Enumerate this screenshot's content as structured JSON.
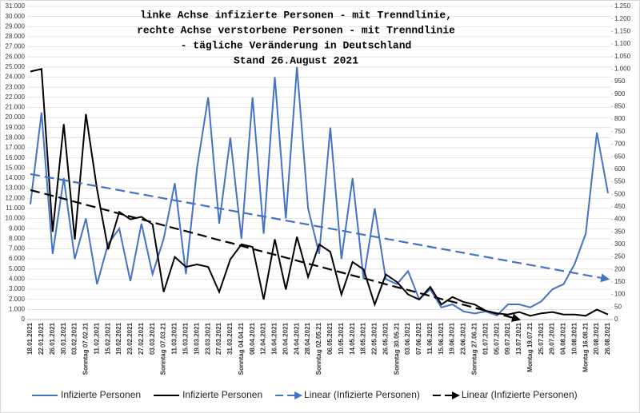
{
  "chart_data": {
    "type": "line",
    "title": [
      "linke Achse infizierte Personen          - mit Trenndlinie,",
      "rechte Achse verstorbene Personen - mit Trenndlinie",
      "- tägliche Veränderung in Deutschland",
      "Stand 26.August 2021"
    ],
    "categories": [
      "18.01.2021",
      "22.01.2021",
      "26.01.2021",
      "30.01.2021",
      "03.02.2021",
      "Sonntag 07.02.21",
      "11.02.2021",
      "15.02.2021",
      "19.02.2021",
      "23.02.2021",
      "27.02.2021",
      "03.03.2021",
      "Sonntag 07.03.21",
      "11.03.2021",
      "15.03.2021",
      "19.03.2021",
      "23.03.2021",
      "27.03.2021",
      "31.03.2021",
      "Sonntag 04.04.21",
      "08.04.2021",
      "12.04.2021",
      "16.04.2021",
      "20.04.2021",
      "24.04.2021",
      "28.04.2021",
      "Sonntag 02.05.21",
      "06.05.2021",
      "10.05.2021",
      "14.05.2021",
      "18.05.2021",
      "22.05.2021",
      "26.05.2021",
      "Sonntag 30.05.21",
      "03.06.2021",
      "07.06.2021",
      "11.06.2021",
      "15.06.2021",
      "19.06.2021",
      "23.06.2021",
      "Sonntag 27.06.21",
      "01.07.2021",
      "05.07.2021",
      "09.07.2021",
      "13.07.2021",
      "Montag 19.07.21",
      "25.07.2021",
      "29.07.2021",
      "04.08.2021",
      "10.08.2021",
      "Montag 16.08.21",
      "20.08.2021",
      "26.08.2021"
    ],
    "series": [
      {
        "name": "Infizierte Personen",
        "color": "#4472c4",
        "axis": "y",
        "style": "solid",
        "values": [
          11400,
          20500,
          6500,
          14000,
          6000,
          10000,
          3500,
          7500,
          9000,
          3800,
          9500,
          4500,
          8000,
          13500,
          4500,
          15000,
          22000,
          9500,
          18000,
          8000,
          22000,
          8500,
          24000,
          10000,
          25000,
          11000,
          6500,
          19000,
          6000,
          14000,
          4000,
          11000,
          4000,
          3500,
          4800,
          2000,
          3000,
          1200,
          1500,
          800,
          600,
          800,
          400,
          1500,
          1500,
          1200,
          1800,
          3000,
          3500,
          5500,
          8500,
          18500,
          12500
        ]
      },
      {
        "name": "Infizierte Personen",
        "color": "#000000",
        "axis": "y2",
        "style": "solid",
        "values": [
          990,
          1000,
          350,
          780,
          320,
          820,
          520,
          280,
          430,
          400,
          410,
          380,
          110,
          250,
          210,
          220,
          210,
          110,
          240,
          300,
          290,
          80,
          320,
          120,
          330,
          170,
          300,
          270,
          100,
          230,
          200,
          60,
          180,
          150,
          100,
          80,
          130,
          60,
          90,
          70,
          60,
          35,
          25,
          20,
          30,
          15,
          25,
          30,
          20,
          20,
          15,
          40,
          20
        ]
      },
      {
        "name": "Linear (Infizierte Personen)",
        "color": "#4472c4",
        "axis": "y",
        "style": "dashed",
        "values": [
          14400,
          14200,
          14000,
          13800,
          13600,
          13400,
          13200,
          13000,
          12800,
          12600,
          12400,
          12200,
          12000,
          11800,
          11600,
          11400,
          11200,
          11000,
          10800,
          10600,
          10400,
          10200,
          10000,
          9800,
          9600,
          9400,
          9200,
          9000,
          8800,
          8600,
          8400,
          8200,
          8000,
          7800,
          7600,
          7400,
          7200,
          7000,
          6800,
          6600,
          6400,
          6200,
          6000,
          5800,
          5600,
          5400,
          5200,
          5000,
          4800,
          4600,
          4400,
          4200,
          4000
        ]
      },
      {
        "name": "Linear (Infizierte Personen)",
        "color": "#000000",
        "axis": "y2",
        "style": "dashed",
        "values": [
          517,
          505,
          494,
          482,
          470,
          458,
          447,
          435,
          423,
          411,
          400,
          388,
          376,
          364,
          353,
          341,
          329,
          317,
          306,
          294,
          282,
          270,
          259,
          247,
          235,
          223,
          212,
          200,
          188,
          176,
          165,
          153,
          141,
          129,
          118,
          106,
          94,
          82,
          71,
          59,
          47,
          35,
          24,
          12,
          0,
          null,
          null,
          null,
          null,
          null,
          null,
          null,
          null
        ]
      }
    ],
    "ylim": [
      0,
      31000
    ],
    "yticks": [
      0,
      {
        "value": 1000,
        "label": "1.000"
      },
      {
        "value": 2000,
        "label": "2.000"
      },
      {
        "value": 3000,
        "label": "3.000"
      },
      {
        "value": 4000,
        "label": "4.000"
      },
      {
        "value": 5000,
        "label": "5.000"
      },
      {
        "value": 6000,
        "label": "6.000"
      },
      {
        "value": 7000,
        "label": "7.000"
      },
      {
        "value": 8000,
        "label": "8.000"
      },
      {
        "value": 9000,
        "label": "9.000"
      },
      {
        "value": 10000,
        "label": "10.000"
      },
      {
        "value": 11000,
        "label": "11.000"
      },
      {
        "value": 12000,
        "label": "12.000"
      },
      {
        "value": 13000,
        "label": "13.000"
      },
      {
        "value": 14000,
        "label": "14.000"
      },
      {
        "value": 15000,
        "label": "15.000"
      },
      {
        "value": 16000,
        "label": "16.000"
      },
      {
        "value": 17000,
        "label": "17.000"
      },
      {
        "value": 18000,
        "label": "18.000"
      },
      {
        "value": 19000,
        "label": "19.000"
      },
      {
        "value": 20000,
        "label": "20.000"
      },
      {
        "value": 21000,
        "label": "21.000"
      },
      {
        "value": 22000,
        "label": "22.000"
      },
      {
        "value": 23000,
        "label": "23.000"
      },
      {
        "value": 24000,
        "label": "24.000"
      },
      {
        "value": 25000,
        "label": "25.000"
      },
      {
        "value": 26000,
        "label": "26.000"
      },
      {
        "value": 27000,
        "label": "27.000"
      },
      {
        "value": 28000,
        "label": "28.000"
      },
      {
        "value": 29000,
        "label": "29.000"
      },
      {
        "value": 30000,
        "label": "30.000"
      },
      {
        "value": 31000,
        "label": "31.000"
      }
    ],
    "y2lim": [
      0,
      1250
    ],
    "y2ticks": [
      0,
      50,
      100,
      150,
      200,
      250,
      300,
      350,
      400,
      450,
      500,
      550,
      600,
      650,
      700,
      750,
      800,
      850,
      900,
      950,
      {
        "value": 1000,
        "label": "1.000"
      },
      {
        "value": 1050,
        "label": "1.050"
      },
      {
        "value": 1100,
        "label": "1.100"
      },
      {
        "value": 1150,
        "label": "1.150"
      },
      {
        "value": 1200,
        "label": "1.200"
      },
      {
        "value": 1250,
        "label": "1.250"
      }
    ],
    "grid": true,
    "legend": "bottom"
  }
}
